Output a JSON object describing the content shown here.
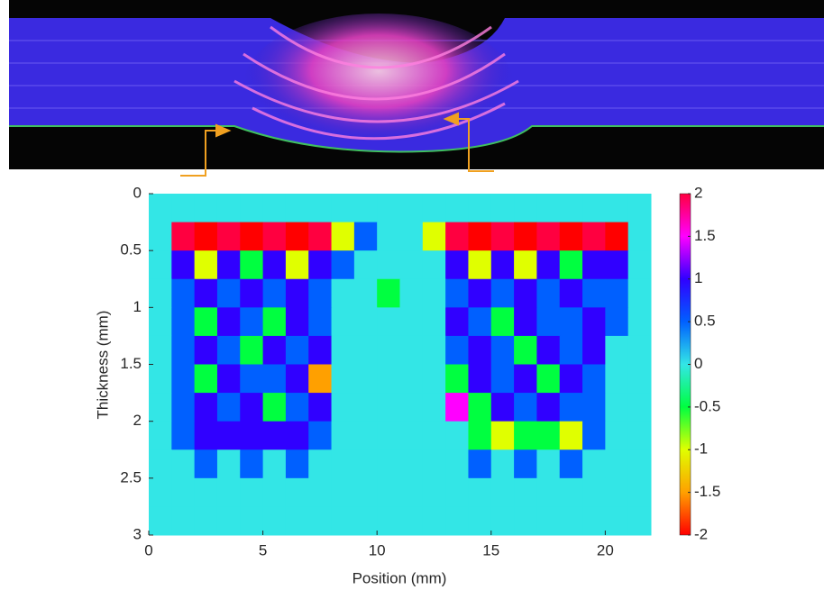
{
  "chart_data": {
    "type": "heatmap",
    "xlabel": "Position (mm)",
    "ylabel": "Thickness (mm)",
    "xlim": [
      0,
      22
    ],
    "xticks": [
      0,
      5,
      10,
      15,
      20
    ],
    "ylim": [
      0,
      3
    ],
    "yticks": [
      0,
      0.5,
      1,
      1.5,
      2,
      2.5,
      3
    ],
    "y_reversed": true,
    "x_edges": [
      0,
      1,
      2,
      3,
      4,
      5,
      6,
      7,
      8,
      9,
      10,
      11,
      12,
      13,
      14,
      15,
      16,
      17,
      18,
      19,
      20,
      21,
      22
    ],
    "y_edges": [
      0,
      0.25,
      0.5,
      0.75,
      1,
      1.25,
      1.5,
      1.75,
      2,
      2.25,
      2.5,
      2.75,
      3
    ],
    "values": [
      [
        0,
        0,
        0,
        0,
        0,
        0,
        0,
        0,
        0,
        0,
        0,
        0,
        0,
        0,
        0,
        0,
        0,
        0,
        0,
        0,
        0,
        0
      ],
      [
        0,
        2,
        -2,
        2,
        -2,
        2,
        -2,
        2,
        -1,
        0.5,
        0,
        0,
        -1,
        2,
        -2,
        2,
        -2,
        2,
        -2,
        2,
        -2,
        0
      ],
      [
        0,
        1,
        -1,
        1,
        -0.5,
        1,
        -1,
        1,
        0.5,
        0,
        0,
        0,
        0,
        1,
        -1,
        1,
        -1,
        1,
        -0.5,
        1,
        1,
        0
      ],
      [
        0,
        0.5,
        1,
        0.5,
        1,
        0.5,
        1,
        0.5,
        0,
        0,
        -0.5,
        0,
        0,
        0.5,
        1,
        0.5,
        1,
        0.5,
        1,
        0.5,
        0.5,
        0
      ],
      [
        0,
        0.5,
        -0.5,
        1,
        0.5,
        -0.5,
        1,
        0.5,
        0,
        0,
        0,
        0,
        0,
        1,
        0.5,
        -0.5,
        1,
        0.5,
        0.5,
        1,
        0.5,
        0
      ],
      [
        0,
        0.5,
        1,
        0.5,
        -0.5,
        1,
        0.5,
        1,
        0,
        0,
        0,
        0,
        0,
        0.5,
        1,
        0.5,
        -0.5,
        1,
        0.5,
        1,
        0,
        0
      ],
      [
        0,
        0.5,
        -0.5,
        1,
        0.5,
        0.5,
        1,
        -1.5,
        0,
        0,
        0,
        0,
        0,
        -0.5,
        1,
        0.5,
        1,
        -0.5,
        1,
        0.5,
        0,
        0
      ],
      [
        0,
        0.5,
        1,
        0.5,
        1,
        -0.5,
        0.5,
        1,
        0,
        0,
        0,
        0,
        0,
        1.5,
        -0.5,
        1,
        0.5,
        1,
        0.5,
        0.5,
        0,
        0
      ],
      [
        0,
        0.5,
        1,
        1,
        1,
        1,
        1,
        0.5,
        0,
        0,
        0,
        0,
        0,
        0,
        -0.5,
        -1,
        -0.5,
        -0.5,
        -1,
        0.5,
        0,
        0
      ],
      [
        0,
        0,
        0.5,
        0,
        0.5,
        0,
        0.5,
        0,
        0,
        0,
        0,
        0,
        0,
        0,
        0.5,
        0,
        0.5,
        0,
        0.5,
        0,
        0,
        0
      ],
      [
        0,
        0,
        0,
        0,
        0,
        0,
        0,
        0,
        0,
        0,
        0,
        0,
        0,
        0,
        0,
        0,
        0,
        0,
        0,
        0,
        0,
        0
      ],
      [
        0,
        0,
        0,
        0,
        0,
        0,
        0,
        0,
        0,
        0,
        0,
        0,
        0,
        0,
        0,
        0,
        0,
        0,
        0,
        0,
        0,
        0
      ]
    ],
    "clim": [
      -2,
      2
    ],
    "cticks": [
      2,
      1.5,
      1,
      0.5,
      0,
      -0.5,
      -1,
      -1.5,
      -2
    ],
    "colormap": [
      "#ff0000",
      "#ffa000",
      "#e0ff00",
      "#00ff40",
      "#33e6e6",
      "#0060ff",
      "#3000ff",
      "#ff00ff",
      "#ff0040"
    ]
  }
}
